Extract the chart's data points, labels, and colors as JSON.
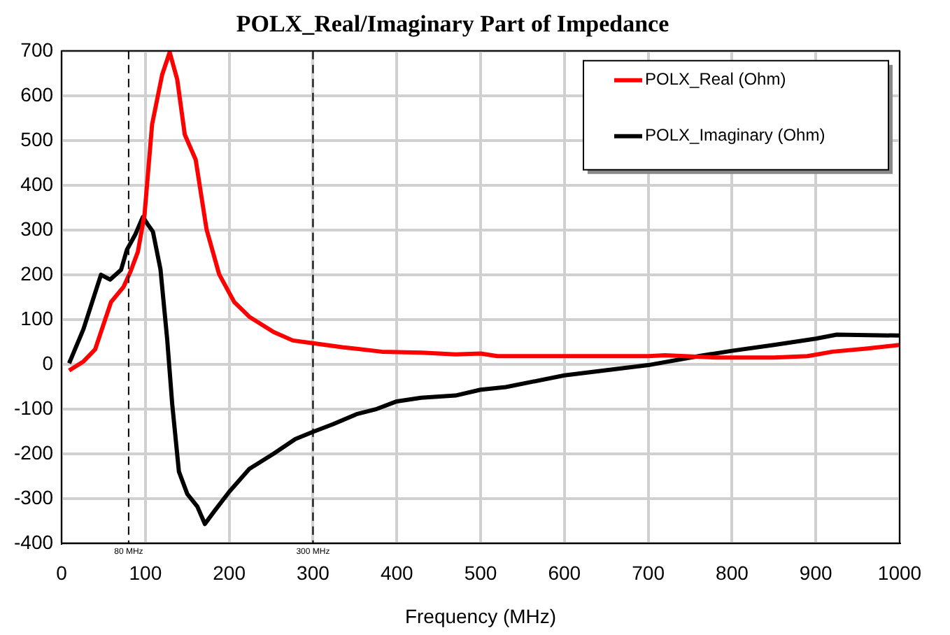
{
  "chart_data": {
    "type": "line",
    "title": "POLX_Real/Imaginary Part of Impedance",
    "xlabel": "Frequency (MHz)",
    "xlim": [
      0,
      1000
    ],
    "xticks": [
      0,
      100,
      200,
      300,
      400,
      500,
      600,
      700,
      800,
      900,
      1000
    ],
    "ylim": [
      -400,
      700
    ],
    "yticks": [
      -400,
      -300,
      -200,
      -100,
      0,
      100,
      200,
      300,
      400,
      500,
      600,
      700
    ],
    "grid": true,
    "legend": "top right",
    "marker": "none",
    "line_style": "solid",
    "ref_lines": [
      {
        "axis": "x",
        "value": 80,
        "label": "80 MHz",
        "color": "#000000",
        "line_style": "dashed"
      },
      {
        "axis": "x",
        "value": 300,
        "label": "300 MHz",
        "color": "#000000",
        "line_style": "dashed"
      }
    ],
    "series": [
      {
        "name": "POLX_Real (Ohm)",
        "color": "#ff0000",
        "x": [
          9,
          26,
          40,
          59,
          74,
          82,
          91,
          99,
          108,
          120,
          129,
          138,
          147,
          160,
          173,
          188,
          206,
          224,
          253,
          276,
          300,
          335,
          382,
          430,
          470,
          500,
          520,
          600,
          700,
          720,
          780,
          850,
          890,
          920,
          960,
          1000
        ],
        "values": [
          -14,
          6,
          33,
          139,
          173,
          206,
          251,
          335,
          536,
          647,
          697,
          636,
          513,
          457,
          301,
          201,
          139,
          106,
          72,
          53,
          47,
          38,
          28,
          26,
          22,
          24,
          18,
          18,
          18,
          20,
          15,
          15,
          18,
          28,
          35,
          43
        ]
      },
      {
        "name": "POLX_Imaginary (Ohm)",
        "color": "#000000",
        "x": [
          9,
          26,
          47,
          58,
          71,
          78,
          88,
          97,
          103,
          109,
          118,
          126,
          132,
          140,
          150,
          162,
          171,
          182,
          200,
          224,
          253,
          279,
          300,
          324,
          353,
          376,
          400,
          429,
          470,
          500,
          530,
          600,
          700,
          760,
          800,
          850,
          900,
          925,
          1000
        ],
        "values": [
          2,
          78,
          200,
          189,
          211,
          256,
          290,
          329,
          312,
          296,
          212,
          56,
          -89,
          -240,
          -290,
          -318,
          -357,
          -329,
          -285,
          -234,
          -200,
          -167,
          -151,
          -134,
          -111,
          -100,
          -83,
          -75,
          -70,
          -57,
          -51,
          -25,
          -2,
          18,
          30,
          43,
          57,
          66,
          64
        ]
      }
    ]
  }
}
